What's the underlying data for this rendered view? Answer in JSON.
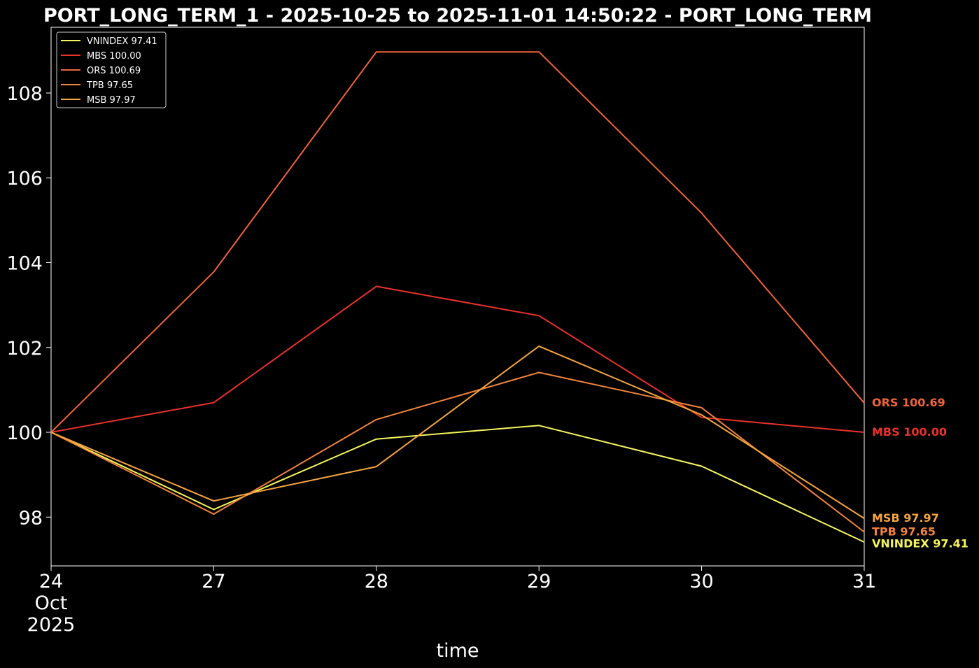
{
  "chart_data": {
    "type": "line",
    "title": "PORT_LONG_TERM_1 - 2025-10-25 to 2025-11-01 14:50:22 - PORT_LONG_TERM",
    "xlabel": "time",
    "ylabel": "",
    "x": [
      "2025-10-24",
      "2025-10-27",
      "2025-10-28",
      "2025-10-29",
      "2025-10-30",
      "2025-10-31"
    ],
    "x_tick_labels": [
      [
        "24",
        "Oct",
        "2025"
      ],
      [
        "27"
      ],
      [
        "28"
      ],
      [
        "29"
      ],
      [
        "30"
      ],
      [
        "31"
      ]
    ],
    "ylim": [
      96.85,
      109.55
    ],
    "y_ticks": [
      98,
      100,
      102,
      104,
      106,
      108
    ],
    "grid": false,
    "legend_position": "top-left",
    "background": "#000000",
    "series": [
      {
        "name": "VNINDEX 97.41",
        "end_label": "VNINDEX 97.41",
        "color": "#f5f55e",
        "values": [
          100.0,
          98.18,
          99.84,
          100.16,
          99.2,
          97.41
        ]
      },
      {
        "name": "MBS 100.00",
        "end_label": "MBS 100.00",
        "color": "#e8322b",
        "values": [
          100.0,
          100.7,
          103.44,
          102.75,
          100.35,
          100.0
        ]
      },
      {
        "name": "ORS 100.69",
        "end_label": "ORS 100.69",
        "color": "#f0643a",
        "values": [
          100.0,
          103.78,
          108.97,
          108.97,
          105.17,
          100.69
        ]
      },
      {
        "name": "TPB 97.65",
        "end_label": "TPB 97.65",
        "color": "#f2843c",
        "values": [
          100.0,
          98.07,
          100.3,
          101.41,
          100.58,
          97.65
        ]
      },
      {
        "name": "MSB 97.97",
        "end_label": "MSB 97.97",
        "color": "#f5a63e",
        "values": [
          100.0,
          98.38,
          99.19,
          102.03,
          100.41,
          97.97
        ]
      }
    ]
  }
}
